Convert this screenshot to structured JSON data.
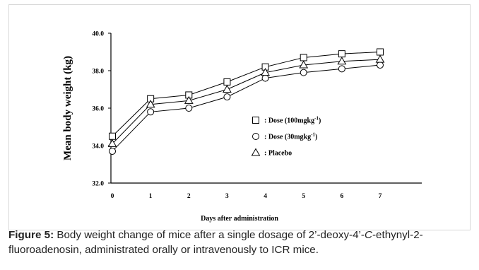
{
  "chart_data": {
    "type": "line",
    "x": [
      0,
      1,
      2,
      3,
      4,
      5,
      6,
      7
    ],
    "xlabel": "Days after administration",
    "ylabel": "Mean body weight (kg)",
    "ylim": [
      32.0,
      40.0
    ],
    "yticks": [
      "32.0",
      "34.0",
      "36.0",
      "38.0",
      "40.0"
    ],
    "xticks": [
      "0",
      "1",
      "2",
      "3",
      "4",
      "5",
      "6",
      "7"
    ],
    "series": [
      {
        "name": "Dose (100mgkg-1)",
        "label": ": Dose (100mgkg",
        "sup": "-1",
        "suffix": ")",
        "marker": "square",
        "values": [
          34.5,
          36.5,
          36.7,
          37.4,
          38.2,
          38.7,
          38.9,
          39.0
        ]
      },
      {
        "name": "Dose (30mgkg-1)",
        "label": ": Dose (30mgkg",
        "sup": "-1",
        "suffix": ")",
        "marker": "circle",
        "values": [
          33.7,
          35.8,
          36.0,
          36.6,
          37.6,
          37.9,
          38.1,
          38.3
        ]
      },
      {
        "name": "Placebo",
        "label": ": Placebo",
        "sup": "",
        "suffix": "",
        "marker": "triangle",
        "values": [
          34.1,
          36.2,
          36.4,
          37.0,
          37.9,
          38.3,
          38.5,
          38.6
        ]
      }
    ],
    "grid": false,
    "legend_position": "center-right"
  },
  "caption": {
    "label": "Figure 5:",
    "text_before": " Body weight change of mice after a single dosage of 2’-deoxy-4’-",
    "italic": "C",
    "text_after": "-ethynyl-2-fluoroadenosin, administrated orally or intravenously to ICR mice."
  }
}
